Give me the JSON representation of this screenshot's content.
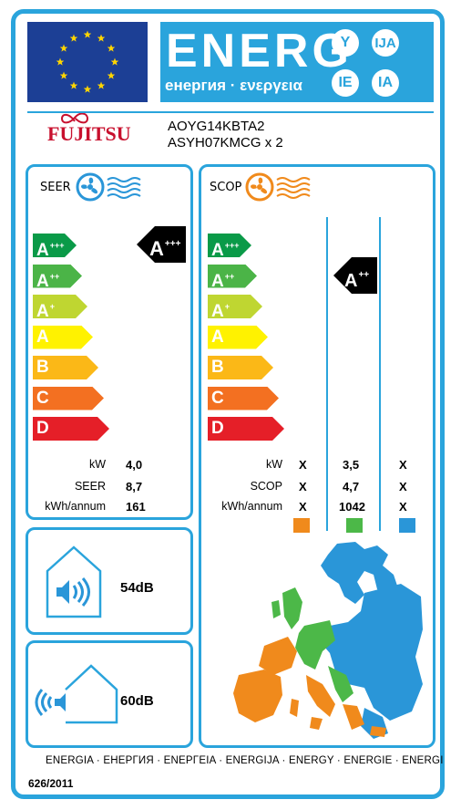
{
  "header": {
    "energy_word": "ENERG",
    "energy_sub": "енергия · ενεργεια",
    "lang_badges": [
      "Y",
      "IJA",
      "IE",
      "IA"
    ],
    "brand": "FUJITSU",
    "model_outdoor": "AOYG14KBTA2",
    "model_indoor": "ASYH07KMCG x 2"
  },
  "seer": {
    "label": "SEER",
    "classes": [
      "A",
      "A",
      "A",
      "A",
      "B",
      "C",
      "D"
    ],
    "class_sups": [
      "+++",
      "++",
      "+",
      "",
      "",
      "",
      ""
    ],
    "indicator_class": "A",
    "indicator_sup": "+++",
    "rows": [
      {
        "label": "kW",
        "value": "4,0"
      },
      {
        "label": "SEER",
        "value": "8,7"
      },
      {
        "label": "kWh/annum",
        "value": "161"
      }
    ]
  },
  "scop": {
    "label": "SCOP",
    "classes": [
      "A",
      "A",
      "A",
      "A",
      "B",
      "C",
      "D"
    ],
    "class_sups": [
      "+++",
      "++",
      "+",
      "",
      "",
      "",
      ""
    ],
    "indicator_class": "A",
    "indicator_sup": "++",
    "rows": [
      {
        "label": "kW",
        "values": [
          "X",
          "3,5",
          "X"
        ]
      },
      {
        "label": "SCOP",
        "values": [
          "X",
          "4,7",
          "X"
        ]
      },
      {
        "label": "kWh/annum",
        "values": [
          "X",
          "1042",
          "X"
        ]
      }
    ],
    "zone_colors": [
      "#f08a1c",
      "#4cb848",
      "#2a96d8"
    ]
  },
  "noise": {
    "indoor": "54dB",
    "outdoor": "60dB"
  },
  "footer": {
    "languages": "ENERGIA · ЕНЕРГИЯ · ΕΝΕΡΓΕΙΑ · ENERGIJA · ENERGY · ENERGIE · ENERGI",
    "regulation": "626/2011"
  },
  "colors": {
    "accent": "#2aa4dc",
    "flag_blue": "#1c3f95",
    "star_yellow": "#ffd500",
    "class_colors": [
      "#0a9a48",
      "#4bb447",
      "#bfd631",
      "#fff200",
      "#fbb817",
      "#f37021",
      "#e51f28"
    ]
  }
}
